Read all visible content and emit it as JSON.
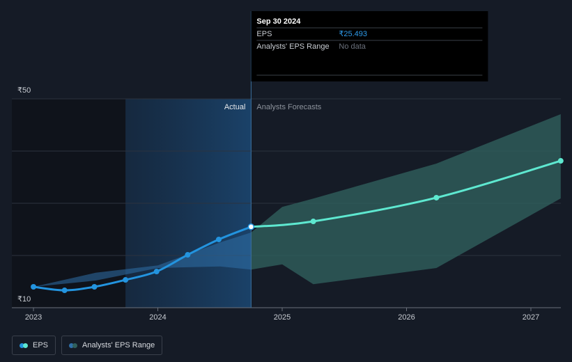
{
  "chart_data": {
    "type": "line",
    "xlim": [
      2022.826,
      2027.241
    ],
    "xticks": [
      2023,
      2024,
      2025,
      2026,
      2027
    ],
    "ylim": [
      10,
      50
    ],
    "yticks": [
      {
        "value": 10,
        "label": "₹10"
      },
      {
        "value": 20,
        "label": null
      },
      {
        "value": 30,
        "label": null
      },
      {
        "value": 40,
        "label": null
      },
      {
        "value": 50,
        "label": "₹50"
      }
    ],
    "grid": true,
    "divider_x": 2024.75,
    "highlight_x": [
      2023.74,
      2024.75
    ],
    "actual_label": "Actual",
    "forecast_label": "Analysts Forecasts",
    "series": [
      {
        "name": "EPS",
        "color": "#2394df",
        "forecast_color": "#5ee8d0",
        "x": [
          2023.0,
          2023.25,
          2023.49,
          2023.74,
          2023.99,
          2024.24,
          2024.49,
          2024.75,
          2025.25,
          2026.24,
          2027.24
        ],
        "values": [
          14.0,
          13.33,
          14.0,
          15.33,
          16.93,
          20.13,
          23.07,
          25.493,
          26.53,
          31.07,
          38.13
        ]
      },
      {
        "name": "Analysts' EPS Range",
        "color": "#2f6fa8",
        "forecast_color": "#2f5f5c",
        "x": [
          2023.0,
          2023.5,
          2024.0,
          2024.5,
          2024.75,
          2025.0,
          2025.25,
          2026.24,
          2027.24
        ],
        "low": [
          14.0,
          15.2,
          17.6,
          17.9,
          17.3,
          18.3,
          14.5,
          17.6,
          30.93
        ],
        "high": [
          14.0,
          16.7,
          18.1,
          22.5,
          24.4,
          29.3,
          30.9,
          37.6,
          47.07
        ]
      }
    ],
    "tooltip": {
      "date": "Sep 30 2024",
      "rows": [
        {
          "label": "EPS",
          "value": "₹25.493"
        },
        {
          "label": "Analysts' EPS Range",
          "value": "No data"
        }
      ]
    }
  }
}
